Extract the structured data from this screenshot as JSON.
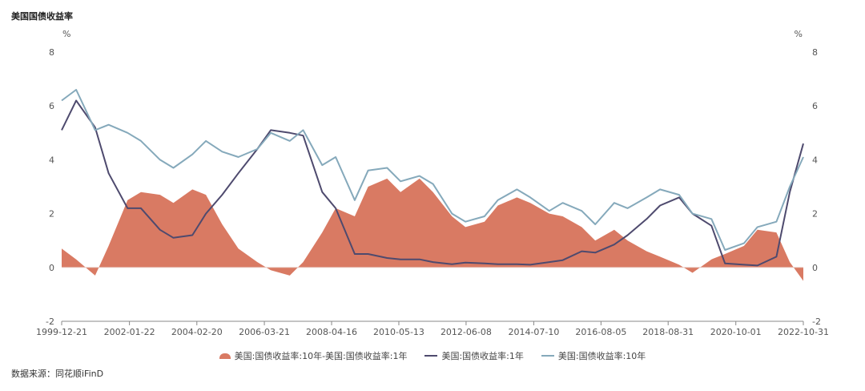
{
  "title": "美国国债收益率",
  "source": "数据来源：同花顺iFinD",
  "colors": {
    "spread": "#d97a63",
    "y1": "#4e4a6e",
    "y10": "#85a9bb"
  },
  "chart_data": {
    "type": "line",
    "ylabel_left": "%",
    "ylabel_right": "%",
    "ylim": [
      -2,
      8
    ],
    "yticks": [
      -2,
      0,
      2,
      4,
      6,
      8
    ],
    "xlim": [
      "1999-12-21",
      "2022-10-31"
    ],
    "xticks": [
      "1999-12-21",
      "2002-01-22",
      "2004-02-20",
      "2006-03-21",
      "2008-04-16",
      "2010-05-13",
      "2012-06-08",
      "2014-07-10",
      "2016-08-05",
      "2018-08-31",
      "2020-10-01",
      "2022-10-31"
    ],
    "grid": false,
    "legend_position": "bottom",
    "series": [
      {
        "name": "美国:国债收益率:10年-美国:国债收益率:1年",
        "kind": "area",
        "x": [
          "1999-12-21",
          "2000-06-01",
          "2001-01-01",
          "2001-06-01",
          "2002-01-01",
          "2002-06-01",
          "2003-01-01",
          "2003-06-01",
          "2004-01-01",
          "2004-06-01",
          "2004-12-01",
          "2005-06-01",
          "2006-01-01",
          "2006-06-01",
          "2007-01-01",
          "2007-06-01",
          "2008-01-01",
          "2008-06-01",
          "2009-01-01",
          "2009-06-01",
          "2010-01-01",
          "2010-06-01",
          "2011-01-01",
          "2011-06-01",
          "2012-01-01",
          "2012-06-01",
          "2013-01-01",
          "2013-06-01",
          "2014-01-01",
          "2014-06-01",
          "2015-01-01",
          "2015-06-01",
          "2016-01-01",
          "2016-06-01",
          "2017-01-01",
          "2017-06-01",
          "2018-01-01",
          "2018-06-01",
          "2019-01-01",
          "2019-06-01",
          "2020-01-01",
          "2020-06-01",
          "2021-01-01",
          "2021-06-01",
          "2022-01-01",
          "2022-06-01",
          "2022-10-31"
        ],
        "values": [
          0.7,
          0.3,
          -0.3,
          0.8,
          2.5,
          2.8,
          2.7,
          2.4,
          2.9,
          2.7,
          1.6,
          0.7,
          0.2,
          -0.1,
          -0.3,
          0.2,
          1.3,
          2.2,
          1.9,
          3.0,
          3.3,
          2.8,
          3.3,
          2.8,
          1.9,
          1.5,
          1.7,
          2.3,
          2.6,
          2.4,
          2.0,
          1.9,
          1.5,
          1.0,
          1.4,
          1.0,
          0.6,
          0.4,
          0.1,
          -0.2,
          0.3,
          0.5,
          0.8,
          1.4,
          1.3,
          0.2,
          -0.5
        ]
      },
      {
        "name": "美国:国债收益率:1年",
        "kind": "line",
        "x": [
          "1999-12-21",
          "2000-06-01",
          "2001-01-01",
          "2001-06-01",
          "2002-01-01",
          "2002-06-01",
          "2003-01-01",
          "2003-06-01",
          "2004-01-01",
          "2004-06-01",
          "2004-12-01",
          "2005-06-01",
          "2006-01-01",
          "2006-06-01",
          "2007-01-01",
          "2007-06-01",
          "2008-01-01",
          "2008-06-01",
          "2009-01-01",
          "2009-06-01",
          "2010-01-01",
          "2010-06-01",
          "2011-01-01",
          "2011-06-01",
          "2012-01-01",
          "2012-06-01",
          "2013-01-01",
          "2013-06-01",
          "2014-01-01",
          "2014-06-01",
          "2015-01-01",
          "2015-06-01",
          "2016-01-01",
          "2016-06-01",
          "2017-01-01",
          "2017-06-01",
          "2018-01-01",
          "2018-06-01",
          "2019-01-01",
          "2019-06-01",
          "2020-01-01",
          "2020-06-01",
          "2021-01-01",
          "2021-06-01",
          "2022-01-01",
          "2022-06-01",
          "2022-10-31"
        ],
        "values": [
          5.1,
          6.2,
          5.2,
          3.5,
          2.2,
          2.2,
          1.4,
          1.1,
          1.2,
          2.0,
          2.7,
          3.5,
          4.4,
          5.1,
          5.0,
          4.9,
          2.8,
          2.2,
          0.5,
          0.5,
          0.35,
          0.3,
          0.3,
          0.2,
          0.12,
          0.18,
          0.15,
          0.12,
          0.12,
          0.1,
          0.2,
          0.27,
          0.6,
          0.55,
          0.85,
          1.2,
          1.8,
          2.3,
          2.6,
          2.0,
          1.55,
          0.15,
          0.1,
          0.07,
          0.4,
          2.8,
          4.6
        ]
      },
      {
        "name": "美国:国债收益率:10年",
        "kind": "line",
        "x": [
          "1999-12-21",
          "2000-06-01",
          "2001-01-01",
          "2001-06-01",
          "2002-01-01",
          "2002-06-01",
          "2003-01-01",
          "2003-06-01",
          "2004-01-01",
          "2004-06-01",
          "2004-12-01",
          "2005-06-01",
          "2006-01-01",
          "2006-06-01",
          "2007-01-01",
          "2007-06-01",
          "2008-01-01",
          "2008-06-01",
          "2009-01-01",
          "2009-06-01",
          "2010-01-01",
          "2010-06-01",
          "2011-01-01",
          "2011-06-01",
          "2012-01-01",
          "2012-06-01",
          "2013-01-01",
          "2013-06-01",
          "2014-01-01",
          "2014-06-01",
          "2015-01-01",
          "2015-06-01",
          "2016-01-01",
          "2016-06-01",
          "2017-01-01",
          "2017-06-01",
          "2018-01-01",
          "2018-06-01",
          "2019-01-01",
          "2019-06-01",
          "2020-01-01",
          "2020-06-01",
          "2021-01-01",
          "2021-06-01",
          "2022-01-01",
          "2022-06-01",
          "2022-10-31"
        ],
        "values": [
          6.2,
          6.6,
          5.1,
          5.3,
          5.0,
          4.7,
          4.0,
          3.7,
          4.2,
          4.7,
          4.3,
          4.1,
          4.4,
          5.0,
          4.7,
          5.1,
          3.8,
          4.1,
          2.5,
          3.6,
          3.7,
          3.2,
          3.4,
          3.1,
          2.0,
          1.7,
          1.9,
          2.5,
          2.9,
          2.6,
          2.1,
          2.4,
          2.1,
          1.6,
          2.4,
          2.2,
          2.6,
          2.9,
          2.7,
          2.0,
          1.8,
          0.65,
          0.9,
          1.5,
          1.7,
          3.0,
          4.1
        ]
      }
    ]
  }
}
